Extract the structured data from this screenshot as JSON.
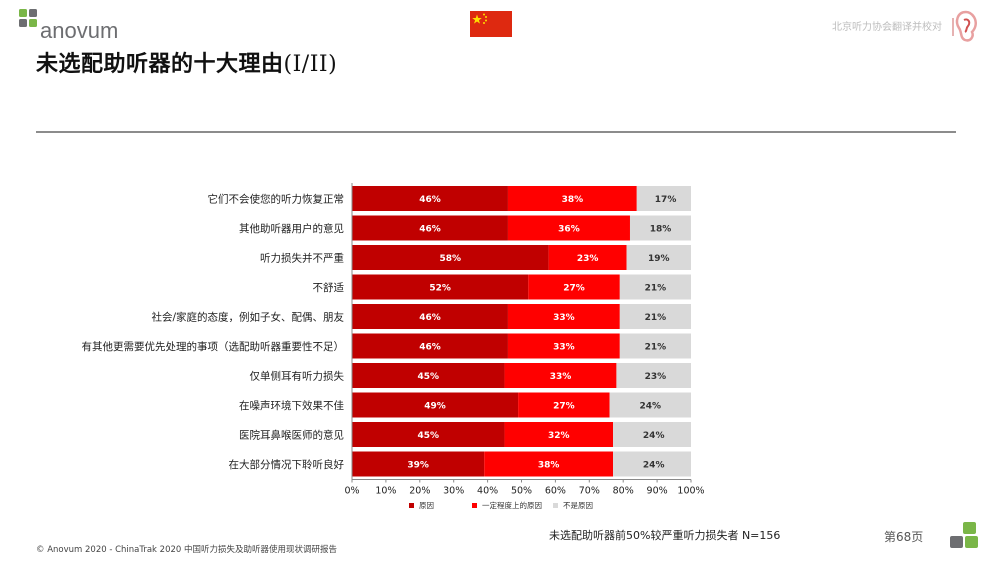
{
  "header": {
    "brand": "anovum",
    "org_note": "北京听力协会翻译并校对",
    "title_main": "未选配助听器的十大理由",
    "title_suffix": "(I/II)"
  },
  "colors": {
    "dark_red": "#c00000",
    "red": "#ff0000",
    "gray": "#d9d9d9",
    "logo_green": "#7ab648",
    "logo_gray": "#6d6e71"
  },
  "chart_data": {
    "type": "bar",
    "orientation": "horizontal",
    "stacked": true,
    "categories": [
      "它们不会使您的听力恢复正常",
      "其他助听器用户的意见",
      "听力损失并不严重",
      "不舒适",
      "社会/家庭的态度，例如子女、配偶、朋友",
      "有其他更需要优先处理的事项（选配助听器重要性不足）",
      "仅单侧耳有听力损失",
      "在噪声环境下效果不佳",
      "医院耳鼻喉医师的意见",
      "在大部分情况下聆听良好"
    ],
    "series": [
      {
        "name": "原因",
        "color": "#c00000",
        "values": [
          46,
          46,
          58,
          52,
          46,
          46,
          45,
          49,
          45,
          39
        ]
      },
      {
        "name": "一定程度上的原因",
        "color": "#ff0000",
        "values": [
          38,
          36,
          23,
          27,
          33,
          33,
          33,
          27,
          32,
          38
        ]
      },
      {
        "name": "不是原因",
        "color": "#d9d9d9",
        "values": [
          17,
          18,
          19,
          21,
          21,
          21,
          23,
          24,
          24,
          24
        ]
      }
    ],
    "value_labels": [
      [
        "46%",
        "46%",
        "58%",
        "52%",
        "46%",
        "46%",
        "45%",
        "49%",
        "45%",
        "39%"
      ],
      [
        "38%",
        "36%",
        "23%",
        "27%",
        "33%",
        "33%",
        "33%",
        "27%",
        "32%",
        "38%"
      ],
      [
        "17%",
        "18%",
        "19%",
        "21%",
        "21%",
        "21%",
        "23%",
        "24%",
        "24%",
        "24%"
      ]
    ],
    "xlim": [
      0,
      100
    ],
    "xticks": [
      "0%",
      "10%",
      "20%",
      "30%",
      "40%",
      "50%",
      "60%",
      "70%",
      "80%",
      "90%",
      "100%"
    ],
    "legend_position": "bottom",
    "grid": false
  },
  "footer": {
    "note": "未选配助听器前50%较严重听力损失者 N=156",
    "copyright": "© Anovum 2020 - ChinaTrak 2020 中国听力损失及助听器使用现状调研报告",
    "page": "第68页"
  }
}
